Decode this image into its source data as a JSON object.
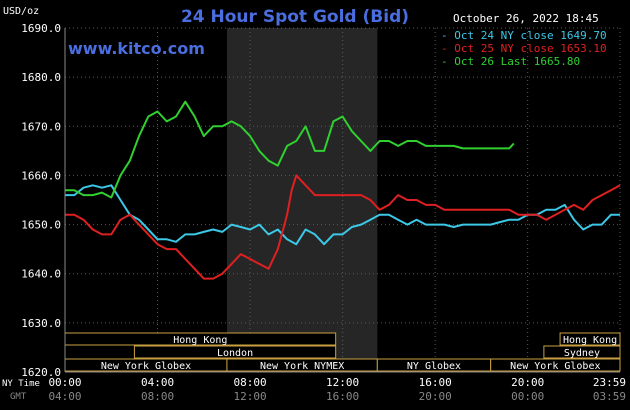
{
  "header": {
    "y_unit": "USD/oz",
    "title": "24 Hour Spot Gold (Bid)",
    "datetime": "October 26, 2022 18:45",
    "watermark": "www.kitco.com"
  },
  "legend": [
    {
      "label": "Oct 24 NY close 1649.70",
      "color": "#3cc8e6"
    },
    {
      "label": "Oct 25 NY close 1653.10",
      "color": "#e02020"
    },
    {
      "label": "Oct 26 Last 1665.80",
      "color": "#30d030"
    }
  ],
  "footer": {
    "ny_time_label": "NY Time",
    "gmt_label": "GMT",
    "ny_ticks": [
      "00:00",
      "04:00",
      "08:00",
      "12:00",
      "16:00",
      "20:00",
      "23:59"
    ],
    "gmt_ticks": [
      "04:00",
      "08:00",
      "12:00",
      "16:00",
      "20:00",
      "00:00",
      "03:59"
    ]
  },
  "sessions": [
    {
      "label": "Hong Kong",
      "row": 0,
      "start": 0.0,
      "end": 11.7
    },
    {
      "label": "Hong Kong",
      "row": 0,
      "start": 21.4,
      "end": 23.99
    },
    {
      "label": "London",
      "row": 1,
      "start": 3.0,
      "end": 11.7
    },
    {
      "label": "Sydney",
      "row": 1,
      "start": 20.7,
      "end": 23.99
    },
    {
      "label": "New York Globex",
      "row": 2,
      "start": 0.0,
      "end": 7.0
    },
    {
      "label": "New York NYMEX",
      "row": 2,
      "start": 7.0,
      "end": 13.5
    },
    {
      "label": "NY Globex",
      "row": 2,
      "start": 13.5,
      "end": 18.4
    },
    {
      "label": "New York Globex",
      "row": 2,
      "start": 18.4,
      "end": 23.99
    }
  ],
  "chart_data": {
    "type": "line",
    "title": "24 Hour Spot Gold (Bid)",
    "ylabel": "USD/oz",
    "xlim": [
      0,
      23.99
    ],
    "ylim": [
      1620,
      1690
    ],
    "yticks": [
      "1620.0",
      "1630.0",
      "1640.0",
      "1650.0",
      "1660.0",
      "1670.0",
      "1680.0",
      "1690.0"
    ],
    "grid": true,
    "legend_position": "top-right",
    "shaded_range": [
      7.0,
      13.5
    ],
    "series": [
      {
        "name": "Oct 24 NY close 1649.70",
        "color": "#3cc8e6",
        "points": [
          [
            0,
            1656
          ],
          [
            0.4,
            1656
          ],
          [
            0.8,
            1657.5
          ],
          [
            1.2,
            1658
          ],
          [
            1.6,
            1657.5
          ],
          [
            2,
            1658
          ],
          [
            2.4,
            1655
          ],
          [
            2.8,
            1652
          ],
          [
            3.2,
            1651
          ],
          [
            3.6,
            1649
          ],
          [
            4,
            1647
          ],
          [
            4.4,
            1647
          ],
          [
            4.8,
            1646.5
          ],
          [
            5.2,
            1648
          ],
          [
            5.6,
            1648
          ],
          [
            6,
            1648.5
          ],
          [
            6.4,
            1649
          ],
          [
            6.8,
            1648.5
          ],
          [
            7.2,
            1650
          ],
          [
            7.6,
            1649.5
          ],
          [
            8,
            1649
          ],
          [
            8.4,
            1650
          ],
          [
            8.8,
            1648
          ],
          [
            9.2,
            1649
          ],
          [
            9.6,
            1647
          ],
          [
            10,
            1646
          ],
          [
            10.4,
            1649
          ],
          [
            10.8,
            1648
          ],
          [
            11.2,
            1646
          ],
          [
            11.6,
            1648
          ],
          [
            12,
            1648
          ],
          [
            12.4,
            1649.5
          ],
          [
            12.8,
            1650
          ],
          [
            13.2,
            1651
          ],
          [
            13.6,
            1652
          ],
          [
            14,
            1652
          ],
          [
            14.4,
            1651
          ],
          [
            14.8,
            1650
          ],
          [
            15.2,
            1651
          ],
          [
            15.6,
            1650
          ],
          [
            16,
            1650
          ],
          [
            16.4,
            1650
          ],
          [
            16.8,
            1649.5
          ],
          [
            17.2,
            1650
          ],
          [
            17.6,
            1650
          ],
          [
            18,
            1650
          ],
          [
            18.4,
            1650
          ],
          [
            18.8,
            1650.5
          ],
          [
            19.2,
            1651
          ],
          [
            19.6,
            1651
          ],
          [
            20,
            1652
          ],
          [
            20.4,
            1652
          ],
          [
            20.8,
            1653
          ],
          [
            21.2,
            1653
          ],
          [
            21.6,
            1654
          ],
          [
            22,
            1651
          ],
          [
            22.4,
            1649
          ],
          [
            22.8,
            1650
          ],
          [
            23.2,
            1650
          ],
          [
            23.6,
            1652
          ],
          [
            23.99,
            1652
          ]
        ]
      },
      {
        "name": "Oct 25 NY close 1653.10",
        "color": "#e02020",
        "points": [
          [
            0,
            1652
          ],
          [
            0.4,
            1652
          ],
          [
            0.8,
            1651
          ],
          [
            1.2,
            1649
          ],
          [
            1.6,
            1648
          ],
          [
            2,
            1648
          ],
          [
            2.4,
            1651
          ],
          [
            2.8,
            1652
          ],
          [
            3.2,
            1650
          ],
          [
            3.6,
            1648
          ],
          [
            4,
            1646
          ],
          [
            4.4,
            1645
          ],
          [
            4.8,
            1645
          ],
          [
            5.2,
            1643
          ],
          [
            5.6,
            1641
          ],
          [
            6,
            1639
          ],
          [
            6.4,
            1639
          ],
          [
            6.8,
            1640
          ],
          [
            7.2,
            1642
          ],
          [
            7.6,
            1644
          ],
          [
            8,
            1643
          ],
          [
            8.4,
            1642
          ],
          [
            8.8,
            1641
          ],
          [
            9.2,
            1645
          ],
          [
            9.6,
            1652
          ],
          [
            9.8,
            1657
          ],
          [
            10,
            1660
          ],
          [
            10.4,
            1658
          ],
          [
            10.8,
            1656
          ],
          [
            11.2,
            1656
          ],
          [
            11.6,
            1656
          ],
          [
            12,
            1656
          ],
          [
            12.4,
            1656
          ],
          [
            12.8,
            1656
          ],
          [
            13.2,
            1655
          ],
          [
            13.6,
            1653
          ],
          [
            14,
            1654
          ],
          [
            14.4,
            1656
          ],
          [
            14.8,
            1655
          ],
          [
            15.2,
            1655
          ],
          [
            15.6,
            1654
          ],
          [
            16,
            1654
          ],
          [
            16.4,
            1653
          ],
          [
            16.8,
            1653
          ],
          [
            17.2,
            1653
          ],
          [
            17.6,
            1653
          ],
          [
            18,
            1653
          ],
          [
            18.4,
            1653
          ],
          [
            18.8,
            1653
          ],
          [
            19.2,
            1653
          ],
          [
            19.6,
            1652
          ],
          [
            20,
            1652
          ],
          [
            20.4,
            1652
          ],
          [
            20.8,
            1651
          ],
          [
            21.2,
            1652
          ],
          [
            21.6,
            1653
          ],
          [
            22,
            1654
          ],
          [
            22.4,
            1653
          ],
          [
            22.8,
            1655
          ],
          [
            23.2,
            1656
          ],
          [
            23.6,
            1657
          ],
          [
            23.99,
            1658
          ]
        ]
      },
      {
        "name": "Oct 26 Last 1665.80",
        "color": "#30d030",
        "points": [
          [
            0,
            1657
          ],
          [
            0.4,
            1657
          ],
          [
            0.8,
            1656
          ],
          [
            1.2,
            1656
          ],
          [
            1.6,
            1656.5
          ],
          [
            2,
            1655.5
          ],
          [
            2.4,
            1660
          ],
          [
            2.8,
            1663
          ],
          [
            3.2,
            1668
          ],
          [
            3.6,
            1672
          ],
          [
            4,
            1673
          ],
          [
            4.4,
            1671
          ],
          [
            4.8,
            1672
          ],
          [
            5.2,
            1675
          ],
          [
            5.6,
            1672
          ],
          [
            6,
            1668
          ],
          [
            6.4,
            1670
          ],
          [
            6.8,
            1670
          ],
          [
            7.2,
            1671
          ],
          [
            7.6,
            1670
          ],
          [
            8,
            1668
          ],
          [
            8.4,
            1665
          ],
          [
            8.8,
            1663
          ],
          [
            9.2,
            1662
          ],
          [
            9.6,
            1666
          ],
          [
            10,
            1667
          ],
          [
            10.4,
            1670
          ],
          [
            10.8,
            1665
          ],
          [
            11.2,
            1665
          ],
          [
            11.6,
            1671
          ],
          [
            12,
            1672
          ],
          [
            12.4,
            1669
          ],
          [
            12.8,
            1667
          ],
          [
            13.2,
            1665
          ],
          [
            13.6,
            1667
          ],
          [
            14,
            1667
          ],
          [
            14.4,
            1666
          ],
          [
            14.8,
            1667
          ],
          [
            15.2,
            1667
          ],
          [
            15.6,
            1666
          ],
          [
            16,
            1666
          ],
          [
            16.4,
            1666
          ],
          [
            16.8,
            1666
          ],
          [
            17.2,
            1665.5
          ],
          [
            17.6,
            1665.5
          ],
          [
            18,
            1665.5
          ],
          [
            18.4,
            1665.5
          ],
          [
            18.8,
            1665.5
          ],
          [
            19.2,
            1665.5
          ],
          [
            19.4,
            1666.5
          ]
        ]
      }
    ]
  }
}
